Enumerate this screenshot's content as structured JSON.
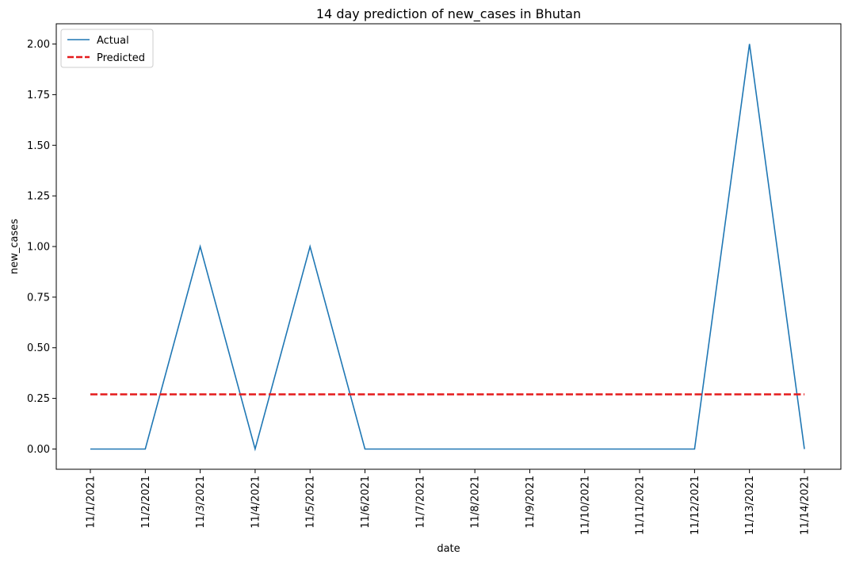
{
  "chart_data": {
    "type": "line",
    "title": "14 day prediction of new_cases in Bhutan",
    "xlabel": "date",
    "ylabel": "new_cases",
    "categories": [
      "11/1/2021",
      "11/2/2021",
      "11/3/2021",
      "11/4/2021",
      "11/5/2021",
      "11/6/2021",
      "11/7/2021",
      "11/8/2021",
      "11/9/2021",
      "11/10/2021",
      "11/11/2021",
      "11/12/2021",
      "11/13/2021",
      "11/14/2021"
    ],
    "series": [
      {
        "name": "Actual",
        "color": "#1f77b4",
        "style": "solid",
        "values": [
          0,
          0,
          1,
          0,
          1,
          0,
          0,
          0,
          0,
          0,
          0,
          0,
          2,
          0
        ]
      },
      {
        "name": "Predicted",
        "color": "#e41a1c",
        "style": "dashed",
        "values": [
          0.27,
          0.27,
          0.27,
          0.27,
          0.27,
          0.27,
          0.27,
          0.27,
          0.27,
          0.27,
          0.27,
          0.27,
          0.27,
          0.27
        ]
      }
    ],
    "ylim": [
      -0.1,
      2.1
    ],
    "yticks": [
      "0.00",
      "0.25",
      "0.50",
      "0.75",
      "1.00",
      "1.25",
      "1.50",
      "1.75",
      "2.00"
    ],
    "grid": false,
    "legend_position": "top-left"
  }
}
